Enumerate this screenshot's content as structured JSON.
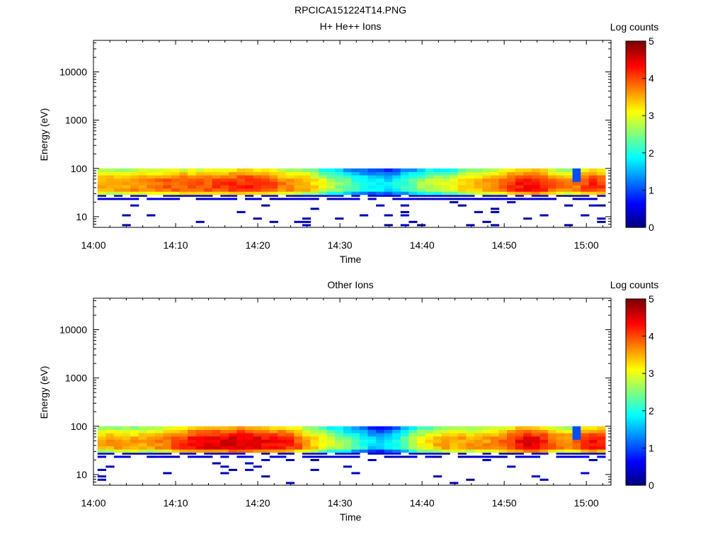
{
  "figure_title": "RPCICA151224T14.PNG",
  "colors": {
    "background": "#ffffff",
    "axis": "#000000"
  },
  "chart_data": [
    {
      "type": "heatmap",
      "title": "H+ He++ Ions",
      "xlabel": "Time",
      "ylabel": "Energy (eV)",
      "x_tick_labels": [
        "14:00",
        "14:10",
        "14:20",
        "14:30",
        "14:40",
        "14:50",
        "15:00"
      ],
      "y_tick_labels": [
        "10",
        "100",
        "1000",
        "10000"
      ],
      "y_scale": "log",
      "ylim": [
        6,
        45000
      ],
      "xlim_minutes": [
        0,
        63
      ],
      "data_x_range_minutes": [
        0.5,
        62.3
      ],
      "data_energy_range_eV": [
        6,
        100
      ],
      "colorbar": {
        "label": "Log counts",
        "ticks": [
          "0",
          "1",
          "2",
          "3",
          "4",
          "5"
        ],
        "range": [
          0,
          5
        ],
        "colormap": "jet"
      },
      "dips_minutes": [
        {
          "center": 30,
          "width": 4,
          "depth": 0.8
        },
        {
          "center": 35,
          "width": 4,
          "depth": 1.3
        },
        {
          "center": 38,
          "width": 4,
          "depth": 0.6
        },
        {
          "center": 43,
          "width": 3,
          "depth": 0.5
        }
      ],
      "boosts_minutes": [
        {
          "center": 10,
          "width": 4,
          "boost": 0.35
        },
        {
          "center": 16,
          "width": 3,
          "boost": 0.4
        },
        {
          "center": 20,
          "width": 3,
          "boost": 0.55
        },
        {
          "center": 26,
          "width": 2,
          "boost": 0.2
        },
        {
          "center": 53,
          "width": 3,
          "boost": 0.8
        },
        {
          "center": 61,
          "width": 2,
          "boost": 0.6
        }
      ],
      "gaps_minutes": [
        59
      ]
    },
    {
      "type": "heatmap",
      "title": "Other Ions",
      "xlabel": "Time",
      "ylabel": "Energy (eV)",
      "x_tick_labels": [
        "14:00",
        "14:10",
        "14:20",
        "14:30",
        "14:40",
        "14:50",
        "15:00"
      ],
      "y_tick_labels": [
        "10",
        "100",
        "1000",
        "10000"
      ],
      "y_scale": "log",
      "ylim": [
        6,
        45000
      ],
      "xlim_minutes": [
        0,
        63
      ],
      "data_x_range_minutes": [
        0.5,
        62.3
      ],
      "data_energy_range_eV": [
        6,
        100
      ],
      "colorbar": {
        "label": "Log counts",
        "ticks": [
          "0",
          "1",
          "2",
          "3",
          "4",
          "5"
        ],
        "range": [
          0,
          5
        ],
        "colormap": "jet"
      },
      "dips_minutes": [
        {
          "center": 31,
          "width": 4,
          "depth": 0.9
        },
        {
          "center": 35,
          "width": 3,
          "depth": 1.4
        },
        {
          "center": 38,
          "width": 3,
          "depth": 0.6
        }
      ],
      "boosts_minutes": [
        {
          "center": 12,
          "width": 3,
          "boost": 0.6
        },
        {
          "center": 16,
          "width": 3,
          "boost": 0.7
        },
        {
          "center": 20,
          "width": 3,
          "boost": 0.8
        },
        {
          "center": 24,
          "width": 2,
          "boost": 0.5
        },
        {
          "center": 53,
          "width": 3,
          "boost": 0.9
        },
        {
          "center": 61,
          "width": 2,
          "boost": 0.7
        }
      ],
      "gaps_minutes": [
        59
      ]
    }
  ]
}
